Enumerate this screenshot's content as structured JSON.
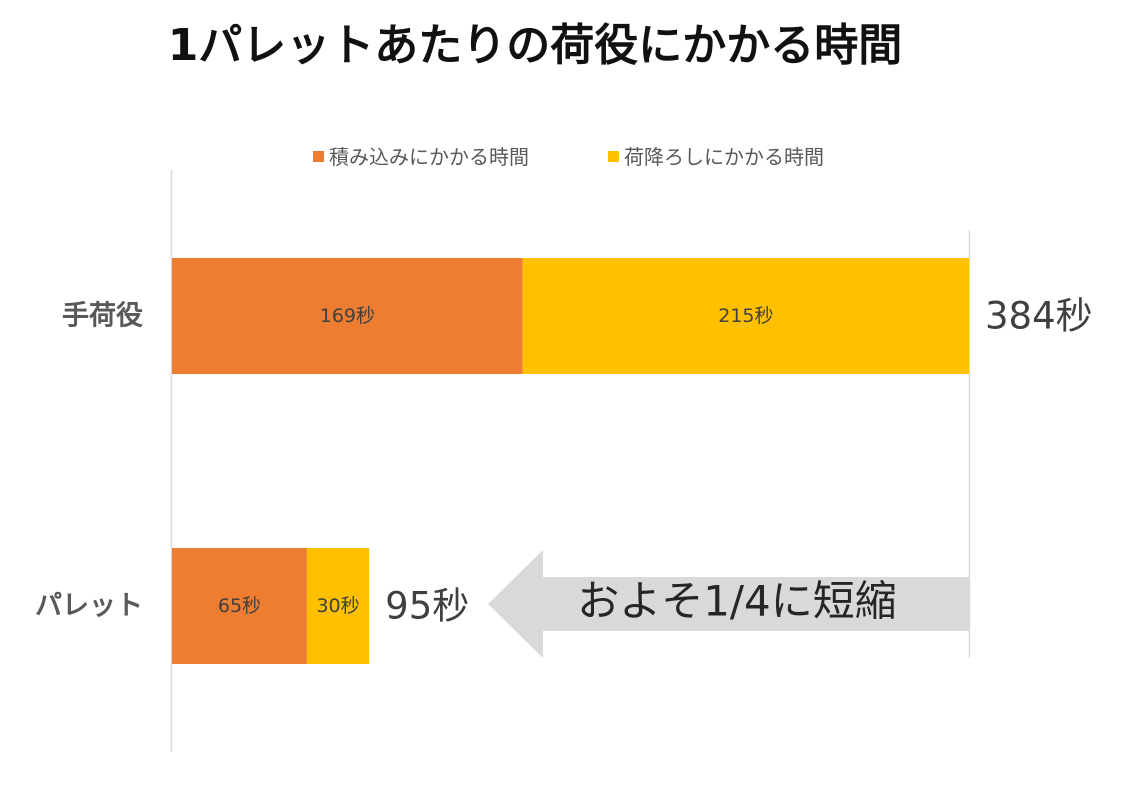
{
  "chart_data": {
    "type": "bar",
    "orientation": "horizontal",
    "stacked": true,
    "title": "1パレットあたりの荷役にかかる時間",
    "categories": [
      "手荷役",
      "パレット"
    ],
    "series": [
      {
        "name": "積み込みにかかる時間",
        "values": [
          169,
          65
        ],
        "labels": [
          "169秒",
          "65秒"
        ],
        "color": "#ED7D31"
      },
      {
        "name": "荷降ろしにかかる時間",
        "values": [
          215,
          30
        ],
        "labels": [
          "215秒",
          "30秒"
        ],
        "color": "#FFC000"
      }
    ],
    "totals": [
      {
        "value": 384,
        "label": "384秒"
      },
      {
        "value": 95,
        "label": "95秒"
      }
    ],
    "annotation": "およそ1/4に短縮",
    "xlim": [
      0,
      384
    ],
    "legend_position": "top",
    "grid": false
  },
  "colors": {
    "title": "#111111",
    "axis_line": "#D9D9D9",
    "category_label": "#595959",
    "legend_text": "#595959",
    "bar_label": "#404040",
    "total_label": "#404040",
    "arrow_fill": "#D9D9D9",
    "annotation_text": "#262626"
  }
}
